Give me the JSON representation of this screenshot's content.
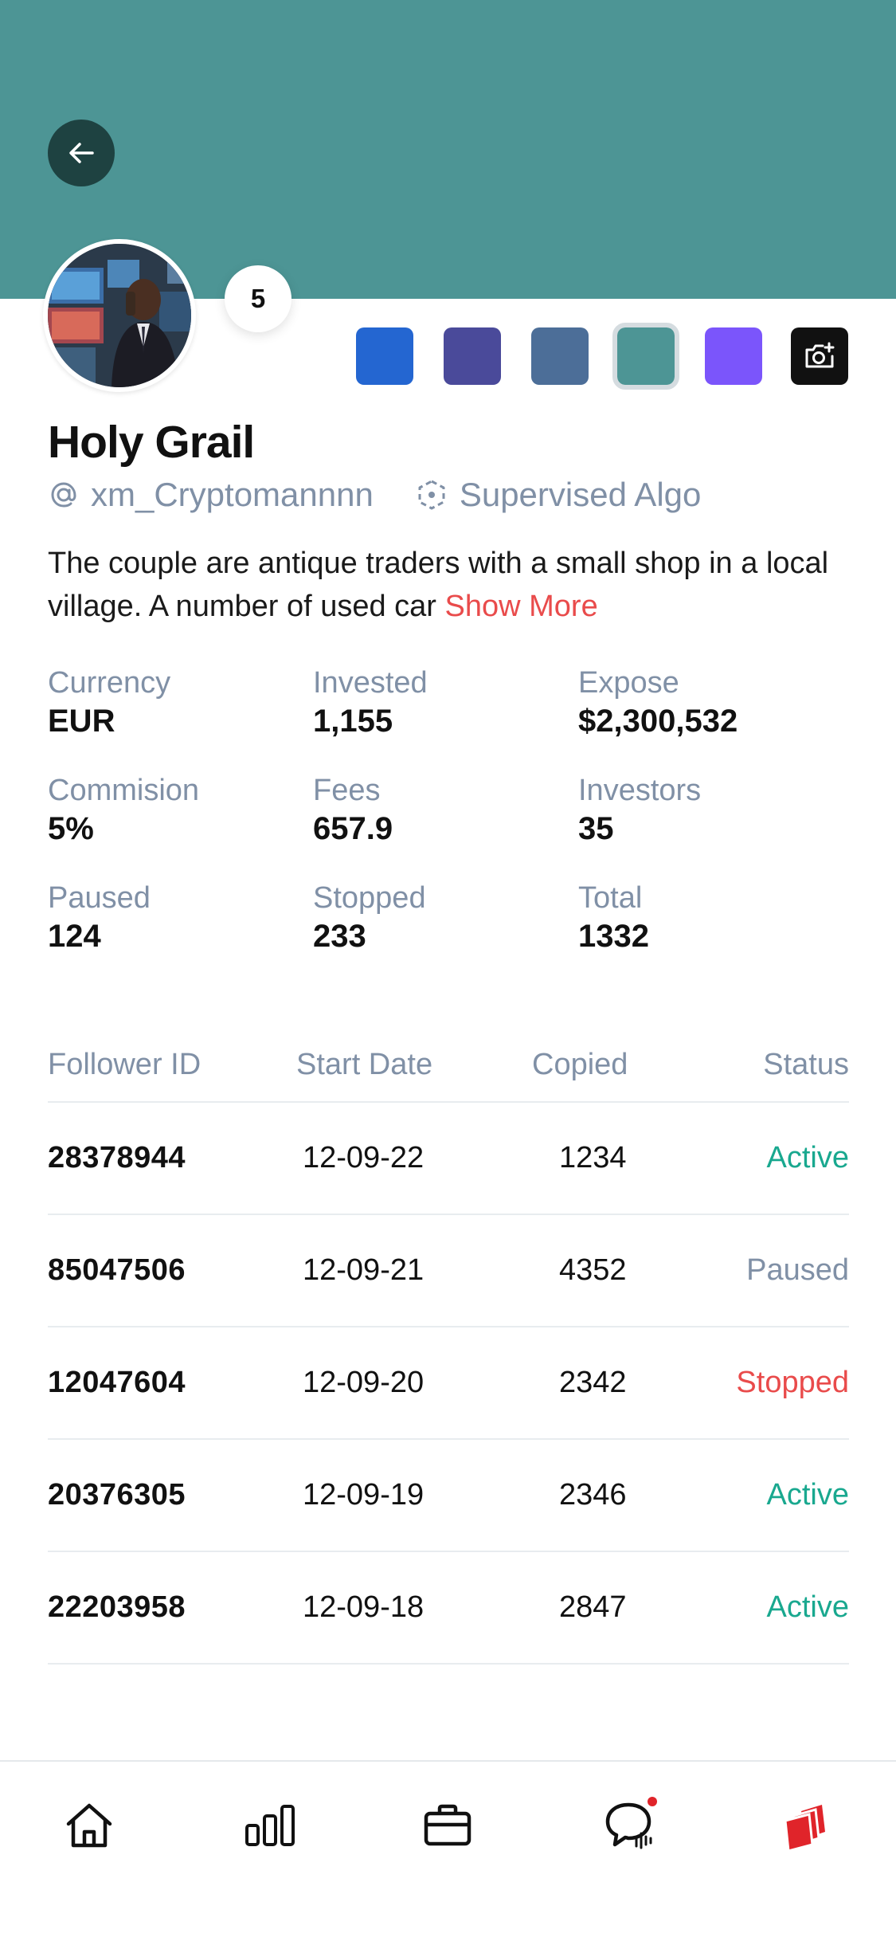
{
  "colors": {
    "banner": "#4D9595",
    "accent_red": "#E94B4B",
    "active_green": "#19A88F",
    "muted": "#8090A6",
    "swatches": [
      "#2466D1",
      "#4A4A9A",
      "#4C6E98",
      "#4D9595",
      "#7B55FB"
    ]
  },
  "profile": {
    "rank": "5",
    "name": "Holy Grail",
    "handle": "xm_Cryptomannnn",
    "algo_label": "Supervised Algo",
    "description": "The couple are antique traders with a small shop in a local village. A number of used car",
    "show_more": "Show More"
  },
  "stats": [
    {
      "label": "Currency",
      "value": "EUR"
    },
    {
      "label": "Invested",
      "value": "1,155"
    },
    {
      "label": "Expose",
      "value": "$2,300,532"
    },
    {
      "label": "Commision",
      "value": "5%"
    },
    {
      "label": "Fees",
      "value": "657.9"
    },
    {
      "label": "Investors",
      "value": "35"
    },
    {
      "label": "Paused",
      "value": "124"
    },
    {
      "label": "Stopped",
      "value": "233"
    },
    {
      "label": "Total",
      "value": "1332"
    }
  ],
  "table": {
    "headers": [
      "Follower ID",
      "Start Date",
      "Copied",
      "Status"
    ],
    "rows": [
      {
        "id": "28378944",
        "date": "12-09-22",
        "copied": "1234",
        "status": "Active"
      },
      {
        "id": "85047506",
        "date": "12-09-21",
        "copied": "4352",
        "status": "Paused"
      },
      {
        "id": "12047604",
        "date": "12-09-20",
        "copied": "2342",
        "status": "Stopped"
      },
      {
        "id": "20376305",
        "date": "12-09-19",
        "copied": "2346",
        "status": "Active"
      },
      {
        "id": "22203958",
        "date": "12-09-18",
        "copied": "2847",
        "status": "Active"
      }
    ]
  },
  "tabbar": {
    "items": [
      "home-icon",
      "bar-chart-icon",
      "briefcase-icon",
      "chat-icon",
      "stacked-cards-icon"
    ],
    "active": "stacked-cards-icon",
    "chat_has_notification": true
  }
}
